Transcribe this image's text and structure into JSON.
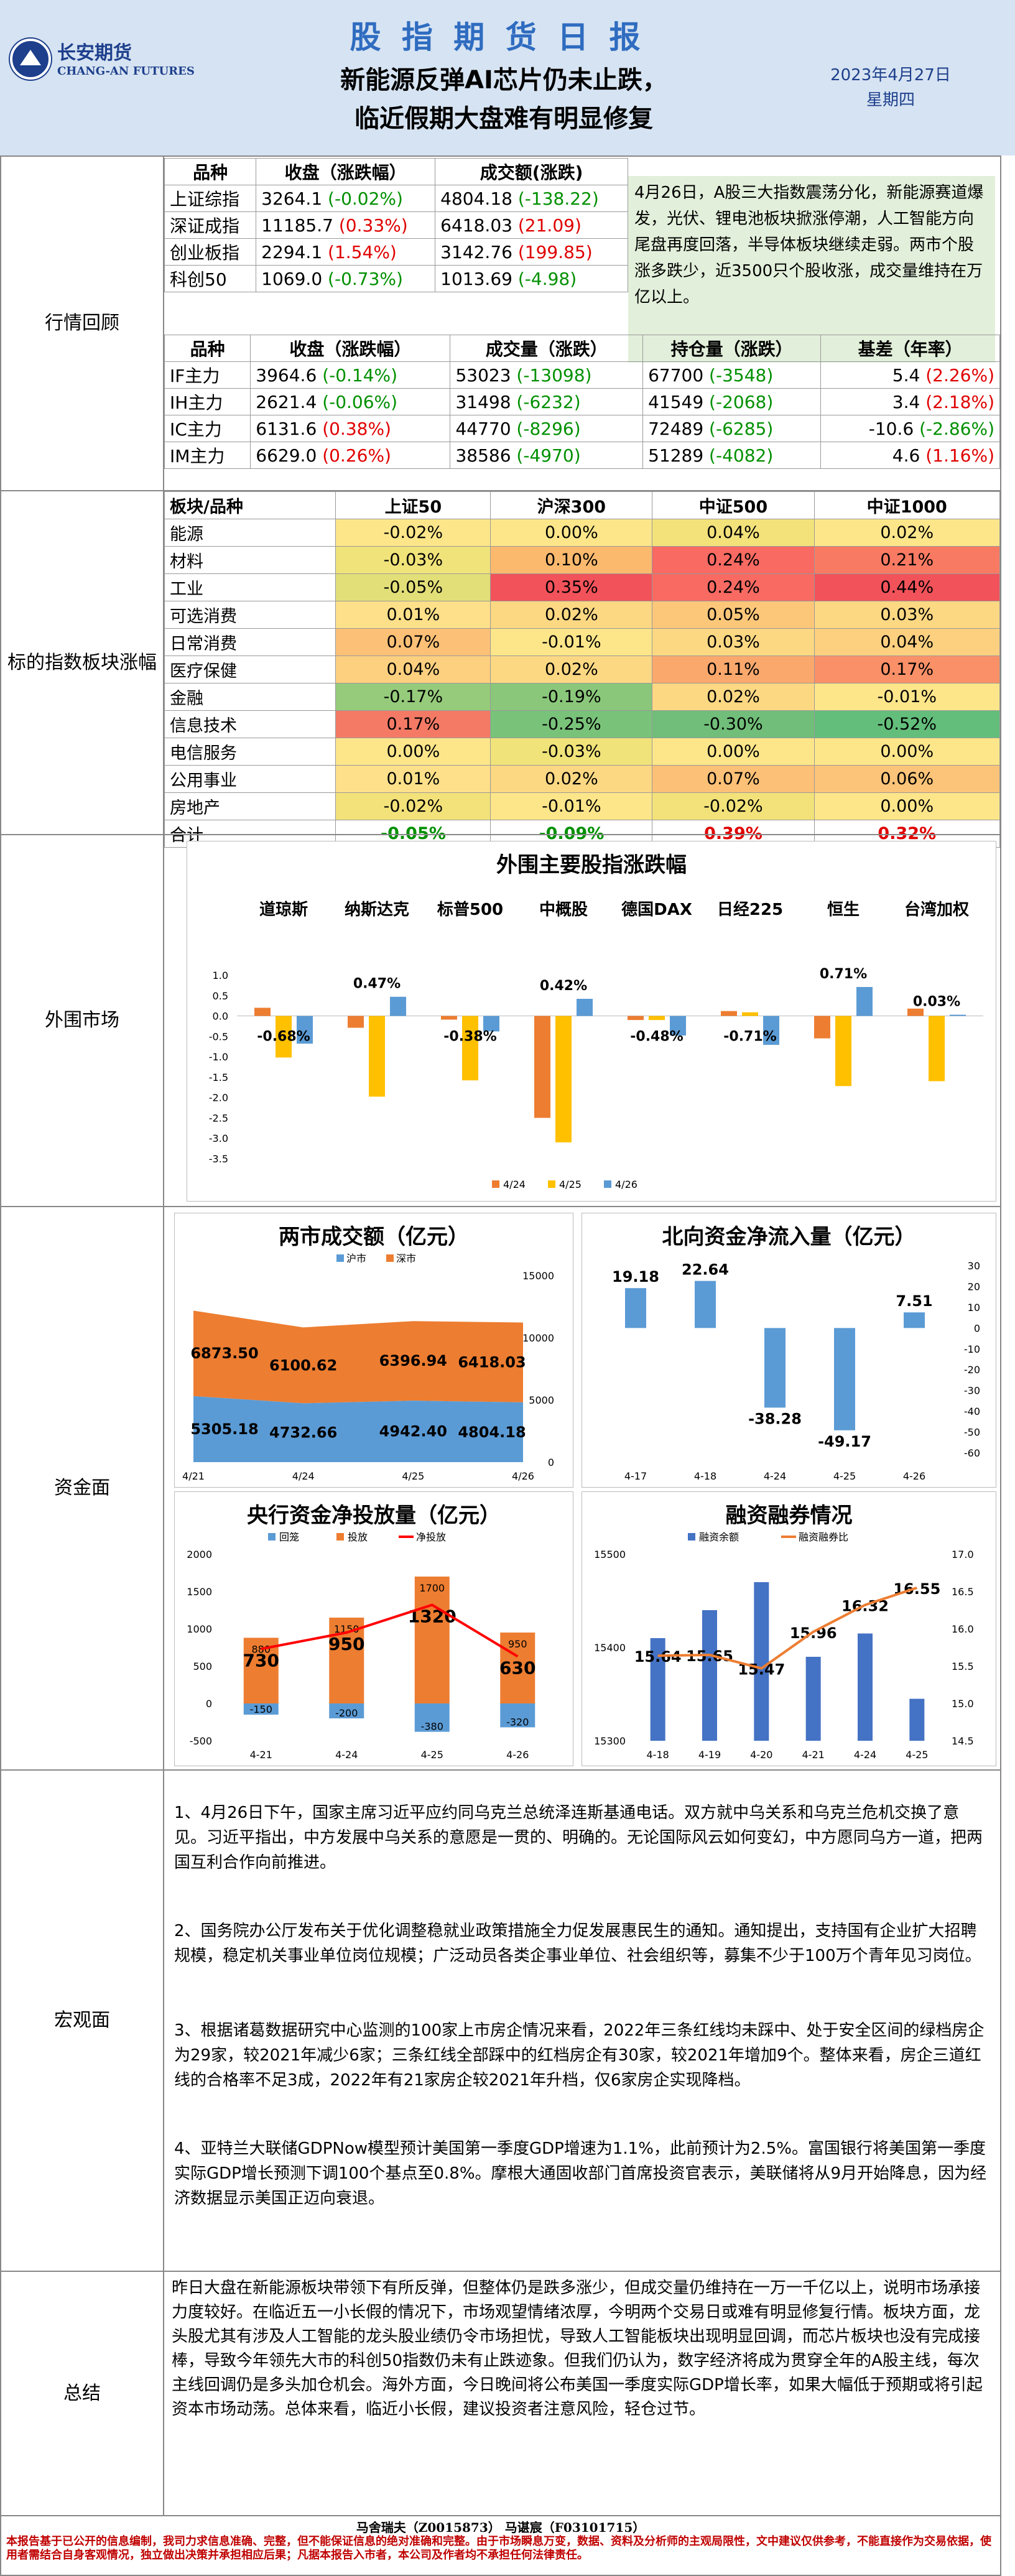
{
  "header": {
    "logo_cn": "长安期货",
    "logo_en": "CHANG-AN FUTURES",
    "report_title": "股 指 期 货 日 报",
    "headline1": "新能源反弹AI芯片仍未止跌，",
    "headline2": "临近假期大盘难有明显修复",
    "date": "2023年4月27日",
    "weekday": "星期四"
  },
  "market_review": {
    "label": "行情回顾",
    "index_headers": [
      "品种",
      "收盘（涨跌幅）",
      "成交额(涨跌)"
    ],
    "index_rows": [
      {
        "name": "上证综指",
        "close": "3264.1",
        "chg": "(-0.02%)",
        "chg_color": "green",
        "amount": "4804.18",
        "amount_chg": "(-138.22)",
        "amount_color": "green"
      },
      {
        "name": "深证成指",
        "close": "11185.7",
        "chg": "(0.33%)",
        "chg_color": "red",
        "amount": "6418.03",
        "amount_chg": "(21.09)",
        "amount_color": "red"
      },
      {
        "name": "创业板指",
        "close": "2294.1",
        "chg": "(1.54%)",
        "chg_color": "red",
        "amount": "3142.76",
        "amount_chg": "(199.85)",
        "amount_color": "red"
      },
      {
        "name": "科创50",
        "close": "1069.0",
        "chg": "(-0.73%)",
        "chg_color": "green",
        "amount": "1013.69",
        "amount_chg": "(-4.98)",
        "amount_color": "green"
      }
    ],
    "commentary": "4月26日，A股三大指数震荡分化，新能源赛道爆发，光伏、锂电池板块掀涨停潮，人工智能方向尾盘再度回落，半导体板块继续走弱。两市个股涨多跌少，近3500只个股收涨，成交量维持在万亿以上。",
    "futures_headers": [
      "品种",
      "收盘（涨跌幅）",
      "成交量（涨跌）",
      "持仓量（涨跌）",
      "基差（年率）"
    ],
    "futures_rows": [
      {
        "name": "IF主力",
        "close": "3964.6",
        "chg": "(-0.14%)",
        "chg_color": "green",
        "vol": "53023",
        "vol_chg": "(-13098)",
        "vol_color": "green",
        "oi": "67700",
        "oi_chg": "(-3548)",
        "oi_color": "green",
        "basis": "5.4",
        "basis_rate": "(2.26%)",
        "basis_color": "red"
      },
      {
        "name": "IH主力",
        "close": "2621.4",
        "chg": "(-0.06%)",
        "chg_color": "green",
        "vol": "31498",
        "vol_chg": "(-6232)",
        "vol_color": "green",
        "oi": "41549",
        "oi_chg": "(-2068)",
        "oi_color": "green",
        "basis": "3.4",
        "basis_rate": "(2.18%)",
        "basis_color": "red"
      },
      {
        "name": "IC主力",
        "close": "6131.6",
        "chg": "(0.38%)",
        "chg_color": "red",
        "vol": "44770",
        "vol_chg": "(-8296)",
        "vol_color": "green",
        "oi": "72489",
        "oi_chg": "(-6285)",
        "oi_color": "green",
        "basis": "-10.6",
        "basis_rate": "(-2.86%)",
        "basis_color": "green"
      },
      {
        "name": "IM主力",
        "close": "6629.0",
        "chg": "(0.26%)",
        "chg_color": "red",
        "vol": "38586",
        "vol_chg": "(-4970)",
        "vol_color": "green",
        "oi": "51289",
        "oi_chg": "(-4082)",
        "oi_color": "green",
        "basis": "4.6",
        "basis_rate": "(1.16%)",
        "basis_color": "red"
      }
    ]
  },
  "sector": {
    "label": "标的指数板块涨幅",
    "headers": [
      "板块/品种",
      "上证50",
      "沪深300",
      "中证500",
      "中证1000"
    ],
    "rows": [
      {
        "name": "能源",
        "vals": [
          "-0.02%",
          "0.00%",
          "0.04%",
          "0.02%"
        ],
        "bg": [
          "#fde68a",
          "#fde68a",
          "#f3e27a",
          "#fde68a"
        ]
      },
      {
        "name": "材料",
        "vals": [
          "-0.03%",
          "0.10%",
          "0.24%",
          "0.21%"
        ],
        "bg": [
          "#f0e37a",
          "#fbb96e",
          "#f86a62",
          "#f97a63"
        ]
      },
      {
        "name": "工业",
        "vals": [
          "-0.05%",
          "0.35%",
          "0.24%",
          "0.44%"
        ],
        "bg": [
          "#e2df78",
          "#f2525a",
          "#f86a62",
          "#f2525a"
        ]
      },
      {
        "name": "可选消费",
        "vals": [
          "0.01%",
          "0.02%",
          "0.05%",
          "0.03%"
        ],
        "bg": [
          "#fde089",
          "#fdd883",
          "#fdc77a",
          "#fdd883"
        ]
      },
      {
        "name": "日常消费",
        "vals": [
          "0.07%",
          "-0.01%",
          "0.03%",
          "0.04%"
        ],
        "bg": [
          "#fcc076",
          "#fde68a",
          "#fdd883",
          "#fdd080"
        ]
      },
      {
        "name": "医疗保健",
        "vals": [
          "0.04%",
          "0.02%",
          "0.11%",
          "0.17%"
        ],
        "bg": [
          "#fdd07f",
          "#fdd883",
          "#fba86d",
          "#fa9068"
        ]
      },
      {
        "name": "金融",
        "vals": [
          "-0.17%",
          "-0.19%",
          "0.02%",
          "-0.01%"
        ],
        "bg": [
          "#95cb7b",
          "#8ac77a",
          "#fdd883",
          "#fde68a"
        ]
      },
      {
        "name": "信息技术",
        "vals": [
          "0.17%",
          "-0.25%",
          "-0.30%",
          "-0.52%"
        ],
        "bg": [
          "#f47a66",
          "#79c27a",
          "#70be79",
          "#63be7b"
        ]
      },
      {
        "name": "电信服务",
        "vals": [
          "0.00%",
          "-0.03%",
          "0.00%",
          "0.00%"
        ],
        "bg": [
          "#fde68a",
          "#f0e37a",
          "#fde68a",
          "#fde68a"
        ]
      },
      {
        "name": "公用事业",
        "vals": [
          "0.01%",
          "0.02%",
          "0.07%",
          "0.06%"
        ],
        "bg": [
          "#fde089",
          "#fdd883",
          "#fcc076",
          "#fcc479"
        ]
      },
      {
        "name": "房地产",
        "vals": [
          "-0.02%",
          "-0.01%",
          "-0.02%",
          "0.00%"
        ],
        "bg": [
          "#f3e27a",
          "#fde68a",
          "#f3e27a",
          "#fde68a"
        ]
      }
    ],
    "total_label": "合计",
    "totals": [
      {
        "v": "-0.05%",
        "color": "green"
      },
      {
        "v": "-0.09%",
        "color": "green"
      },
      {
        "v": "0.39%",
        "color": "red"
      },
      {
        "v": "0.32%",
        "color": "red"
      }
    ]
  },
  "external": {
    "label": "外围市场",
    "chart_data": {
      "type": "bar",
      "title": "外围主要股指涨跌幅",
      "categories": [
        "道琼斯",
        "纳斯达克",
        "标普500",
        "中概股",
        "德国DAX",
        "日经225",
        "恒生",
        "台湾加权"
      ],
      "series": [
        {
          "name": "4/24",
          "color": "#ed7d31",
          "values": [
            0.2,
            -0.29,
            -0.09,
            -2.5,
            -0.1,
            0.12,
            -0.55,
            0.18
          ]
        },
        {
          "name": "4/25",
          "color": "#ffc000",
          "values": [
            -1.02,
            -1.98,
            -1.58,
            -3.1,
            -0.1,
            0.09,
            -1.72,
            -1.6
          ]
        },
        {
          "name": "4/26",
          "color": "#5b9bd5",
          "values": [
            -0.68,
            0.47,
            -0.38,
            0.42,
            -0.48,
            -0.71,
            0.71,
            0.03
          ]
        }
      ],
      "data_labels": [
        "-0.68%",
        "0.47%",
        "-0.38%",
        "0.42%",
        "-0.48%",
        "-0.71%",
        "0.71%",
        "0.03%"
      ],
      "ylim": [
        -3.5,
        1.0
      ],
      "yticks": [
        "1.0",
        "0.5",
        "0.0",
        "-0.5",
        "-1.0",
        "-1.5",
        "-2.0",
        "-2.5",
        "-3.0",
        "-3.5"
      ]
    }
  },
  "funds": {
    "label": "资金面",
    "turnover": {
      "chart_data": {
        "type": "area",
        "title": "两市成交额（亿元）",
        "categories": [
          "4/21",
          "4/24",
          "4/25",
          "4/26"
        ],
        "series": [
          {
            "name": "沪市",
            "color": "#5b9bd5",
            "values": [
              5305.18,
              4732.66,
              4942.4,
              4804.18
            ]
          },
          {
            "name": "深市",
            "color": "#ed7d31",
            "values": [
              6873.5,
              6100.62,
              6396.94,
              6418.03
            ]
          }
        ],
        "sh_labels": [
          "5305.18",
          "4732.66",
          "4942.40",
          "4804.18"
        ],
        "sz_labels": [
          "6873.50",
          "6100.62",
          "6396.94",
          "6418.03"
        ],
        "ylim": [
          0,
          15000
        ],
        "yticks": [
          "15000",
          "10000",
          "5000",
          "0"
        ]
      }
    },
    "northbound": {
      "chart_data": {
        "type": "bar",
        "title": "北向资金净流入量（亿元）",
        "categories": [
          "4-17",
          "4-18",
          "4-24",
          "4-25",
          "4-26"
        ],
        "values": [
          19.18,
          22.64,
          -38.28,
          -49.17,
          7.51
        ],
        "labels": [
          "19.18",
          "22.64",
          "-38.28",
          "-49.17",
          "7.51"
        ],
        "color": "#5b9bd5",
        "ylim": [
          -60,
          30
        ],
        "yticks": [
          "30",
          "20",
          "10",
          "0",
          "-10",
          "-20",
          "-30",
          "-40",
          "-50",
          "-60"
        ]
      }
    },
    "pboc": {
      "chart_data": {
        "type": "bar",
        "title": "央行资金净投放量（亿元）",
        "categories": [
          "4-21",
          "4-24",
          "4-25",
          "4-26"
        ],
        "series": [
          {
            "name": "回笼",
            "color": "#5b9bd5",
            "values": [
              -150,
              -200,
              -380,
              -320
            ]
          },
          {
            "name": "投放",
            "color": "#ed7d31",
            "values": [
              880,
              1150,
              1700,
              950
            ]
          },
          {
            "name": "净投放",
            "color": "#ff0000",
            "values": [
              730,
              950,
              1320,
              630
            ]
          }
        ],
        "withdraw_labels": [
          "-150",
          "-200",
          "-380",
          "-320"
        ],
        "inject_labels": [
          "880",
          "1150",
          "1700",
          "950"
        ],
        "net_labels": [
          "730",
          "950",
          "1320",
          "630"
        ],
        "ylim": [
          -500,
          2000
        ],
        "yticks": [
          "2000",
          "1500",
          "1000",
          "500",
          "0",
          "-500"
        ]
      }
    },
    "margin": {
      "chart_data": {
        "type": "bar",
        "title": "融资融券情况",
        "categories": [
          "4-18",
          "4-19",
          "4-20",
          "4-21",
          "4-24",
          "4-25"
        ],
        "series": [
          {
            "name": "融资余额",
            "color": "#4472c4",
            "values": [
              15410,
              15440,
              15470,
              15390,
              15415,
              15345
            ]
          },
          {
            "name": "融资融券比",
            "color": "#ed7d31",
            "values": [
              15.64,
              15.65,
              15.47,
              15.96,
              16.32,
              16.55
            ]
          }
        ],
        "ratio_labels": [
          "15.64",
          "15.65",
          "15.47",
          "15.96",
          "16.32",
          "16.55"
        ],
        "ylim_left": [
          15300,
          15500
        ],
        "yticks_left": [
          "15500",
          "15400",
          "15300"
        ],
        "ylim_right": [
          14.5,
          17.0
        ],
        "yticks_right": [
          "17.0",
          "16.5",
          "16.0",
          "15.5",
          "15.0",
          "14.5"
        ]
      }
    }
  },
  "macro": {
    "label": "宏观面",
    "paras": [
      "1、4月26日下午，国家主席习近平应约同乌克兰总统泽连斯基通电话。双方就中乌关系和乌克兰危机交换了意见。习近平指出，中方发展中乌关系的意愿是一贯的、明确的。无论国际风云如何变幻，中方愿同乌方一道，把两国互利合作向前推进。",
      "2、国务院办公厅发布关于优化调整稳就业政策措施全力促发展惠民生的通知。通知提出，支持国有企业扩大招聘规模，稳定机关事业单位岗位规模；广泛动员各类企事业单位、社会组织等，募集不少于100万个青年见习岗位。",
      "3、根据诸葛数据研究中心监测的100家上市房企情况来看，2022年三条红线均未踩中、处于安全区间的绿档房企为29家，较2021年减少6家；三条红线全部踩中的红档房企有30家，较2021年增加9个。整体来看，房企三道红线的合格率不足3成，2022年有21家房企较2021年升档，仅6家房企实现降档。",
      "4、亚特兰大联储GDPNow模型预计美国第一季度GDP增速为1.1%，此前预计为2.5%。富国银行将美国第一季度实际GDP增长预测下调100个基点至0.8%。摩根大通固收部门首席投资官表示，美联储将从9月开始降息，因为经济数据显示美国正迈向衰退。"
    ]
  },
  "summary": {
    "label": "总结",
    "text": "昨日大盘在新能源板块带领下有所反弹，但整体仍是跌多涨少，但成交量仍维持在一万一千亿以上，说明市场承接力度较好。在临近五一小长假的情况下，市场观望情绪浓厚，今明两个交易日或难有明显修复行情。板块方面，龙头股尤其有涉及人工智能的龙头股业绩仍令市场担忧，导致人工智能板块出现明显回调，而芯片板块也没有完成接棒，导致今年领先大市的科创50指数仍未有止跌迹象。但我们仍认为，数字经济将成为贯穿全年的A股主线，每次主线回调仍是多头加仓机会。海外方面，今日晚间将公布美国一季度实际GDP增长率，如果大幅低于预期或将引起资本市场动荡。总体来看，临近小长假，建议投资者注意风险，轻仓过节。"
  },
  "footer": {
    "analysts": "马舍瑞夫（Z0015873）       马谌宸（F03101715）",
    "disclaimer": "本报告基于已公开的信息编制，我司力求信息准确、完整，但不能保证信息的绝对准确和完整。由于市场瞬息万变，数据、资料及分析师的主观局限性，文中建议仅供参考，不能直接作为交易依据，使用者需结合自身客观情况，独立做出决策并承担相应后果；凡据本报告入市者，本公司及作者均不承担任何法律责任。"
  },
  "colors": {
    "red": "#e00000",
    "green": "#009000",
    "header_bg": "#d6e3f2",
    "accent": "#2f6cc0"
  }
}
